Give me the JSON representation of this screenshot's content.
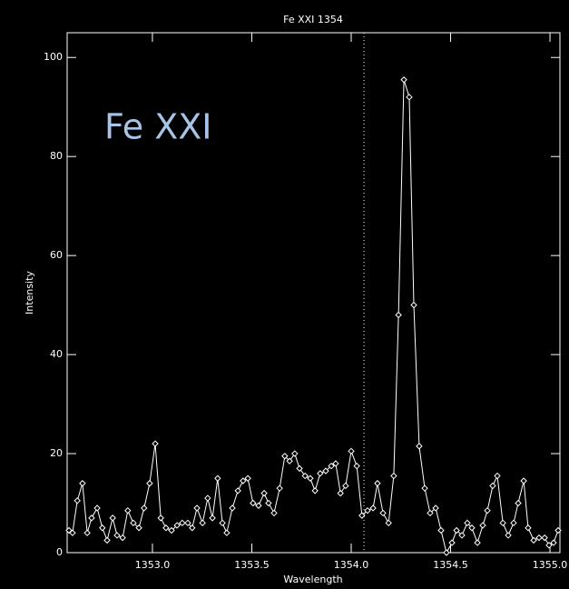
{
  "chart_data": {
    "type": "line",
    "title": "Fe XXI 1354",
    "annotation": "Fe XXI",
    "x_label": "Wavelength",
    "y_label": "Intensity",
    "xlim": [
      1352.571,
      1355.05
    ],
    "ylim": [
      0,
      105
    ],
    "xticks": [
      {
        "value": 1353,
        "label": "1353.0"
      },
      {
        "value": 1353.5,
        "label": "1353.5"
      },
      {
        "value": 1354,
        "label": "1354.0"
      },
      {
        "value": 1354.5,
        "label": "1354.5"
      },
      {
        "value": 1355,
        "label": "1355.0"
      }
    ],
    "yticks": [
      0,
      20,
      40,
      60,
      80,
      100
    ],
    "vline": 1354.064,
    "series": [
      {
        "color": "#ffffff",
        "x": [
          1352.58,
          1352.598,
          1352.622,
          1352.648,
          1352.672,
          1352.694,
          1352.722,
          1352.748,
          1352.772,
          1352.8,
          1352.822,
          1352.85,
          1352.876,
          1352.904,
          1352.932,
          1352.958,
          1352.986,
          1353.014,
          1353.042,
          1353.068,
          1353.096,
          1353.124,
          1353.15,
          1353.178,
          1353.2,
          1353.224,
          1353.252,
          1353.278,
          1353.302,
          1353.328,
          1353.352,
          1353.374,
          1353.402,
          1353.43,
          1353.456,
          1353.48,
          1353.506,
          1353.534,
          1353.562,
          1353.584,
          1353.612,
          1353.64,
          1353.666,
          1353.69,
          1353.716,
          1353.74,
          1353.768,
          1353.794,
          1353.818,
          1353.844,
          1353.872,
          1353.9,
          1353.922,
          1353.946,
          1353.972,
          1354.0,
          1354.028,
          1354.054,
          1354.082,
          1354.11,
          1354.132,
          1354.16,
          1354.188,
          1354.214,
          1354.238,
          1354.265,
          1354.292,
          1354.315,
          1354.342,
          1354.37,
          1354.397,
          1354.425,
          1354.452,
          1354.479,
          1354.507,
          1354.53,
          1354.557,
          1354.584,
          1354.607,
          1354.635,
          1354.662,
          1354.685,
          1354.712,
          1354.735,
          1354.763,
          1354.79,
          1354.817,
          1354.84,
          1354.868,
          1354.89,
          1354.918,
          1354.945,
          1354.973,
          1354.995,
          1355.018,
          1355.041
        ],
        "values": [
          4.5,
          4,
          10.5,
          14,
          4,
          7,
          9,
          5,
          2.5,
          7,
          3.5,
          3,
          8.5,
          6,
          5,
          9,
          14,
          22,
          7,
          5,
          4.5,
          5.5,
          6,
          6,
          5,
          9,
          6,
          11,
          7,
          15,
          6,
          4,
          9,
          12.5,
          14.5,
          15,
          10,
          9.5,
          12,
          10,
          8,
          13,
          19.5,
          18.5,
          20,
          17,
          15.5,
          15,
          12.5,
          16,
          16.5,
          17.5,
          18,
          12,
          13.5,
          20.5,
          17.5,
          7.5,
          8.5,
          9,
          14,
          8,
          6,
          15.5,
          48,
          95.5,
          92,
          50,
          21.5,
          13,
          8,
          9,
          4.5,
          0,
          2,
          4.5,
          3.5,
          6,
          5,
          2,
          5.5,
          8.5,
          13.5,
          15.5,
          6,
          3.5,
          6,
          10,
          14.5,
          5,
          2.5,
          3,
          3,
          1.5,
          2,
          4.5
        ]
      }
    ]
  }
}
